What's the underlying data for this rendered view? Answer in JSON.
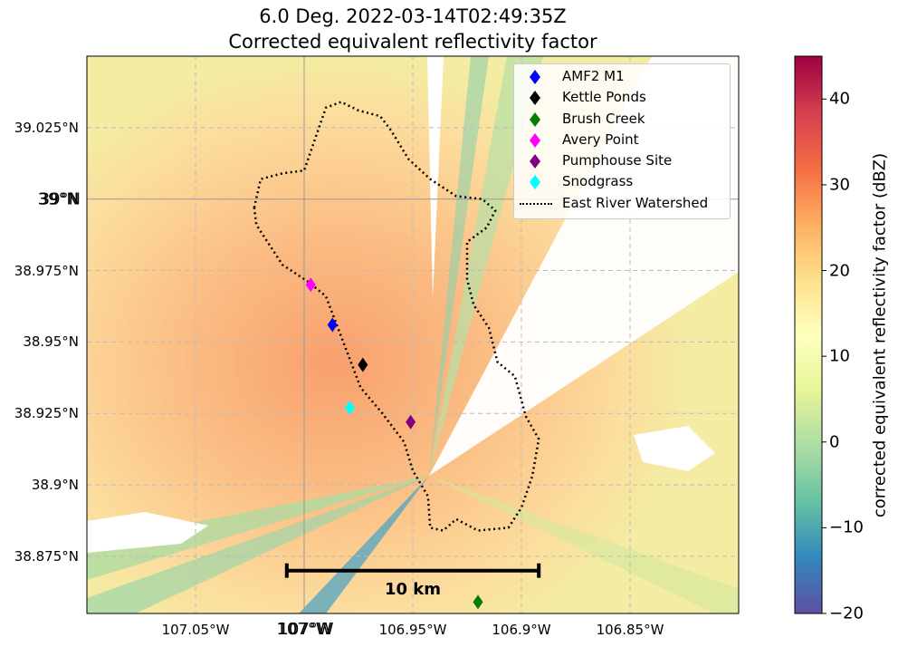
{
  "title": {
    "line1": "6.0 Deg. 2022-03-14T02:49:35Z",
    "line2": "Corrected equivalent reflectivity factor"
  },
  "colorbar": {
    "label": "corrected equivalent reflectivity factor (dBZ)",
    "min": -20,
    "max": 45,
    "ticks": [
      "40",
      "30",
      "20",
      "10",
      "0",
      "−10",
      "−20"
    ],
    "tick_values": [
      40,
      30,
      20,
      10,
      0,
      -10,
      -20
    ],
    "colormap": "Spectral_r"
  },
  "map": {
    "lon_range": [
      -107.1,
      -106.8
    ],
    "lat_range": [
      38.855,
      39.05
    ],
    "lat_ticks": [
      "39.025°N",
      "38.975°N",
      "38.95°N",
      "38.925°N",
      "38.9°N",
      "38.875°N"
    ],
    "lat_tick_values": [
      39.025,
      38.975,
      38.95,
      38.925,
      38.9,
      38.875
    ],
    "lon_ticks": [
      "107.05°W",
      "106.95°W",
      "106.9°W",
      "106.85°W"
    ],
    "lon_tick_values": [
      -107.05,
      -106.95,
      -106.9,
      -106.85
    ],
    "major_lat_label": "39°N",
    "major_lat_label_overlap": "39°N",
    "major_lat_value": 39.0,
    "major_lon_label": "107°W",
    "major_lon_label_overlap": "107°W",
    "major_lon_value": -107.0,
    "radar_location": {
      "lon": -106.945,
      "lat": 38.899
    }
  },
  "legend": {
    "placement": "top-right",
    "entries": [
      {
        "label": "AMF2 M1",
        "color": "#0000ff",
        "marker": "diamond"
      },
      {
        "label": "Kettle Ponds",
        "color": "#000000",
        "marker": "diamond"
      },
      {
        "label": "Brush Creek",
        "color": "#008000",
        "marker": "diamond"
      },
      {
        "label": "Avery Point",
        "color": "#ff00ff",
        "marker": "diamond"
      },
      {
        "label": "Pumphouse Site",
        "color": "#800080",
        "marker": "diamond"
      },
      {
        "label": "Snodgrass",
        "color": "#00ffff",
        "marker": "diamond"
      },
      {
        "label": "East River Watershed",
        "color": "#000000",
        "marker": "dotted-line"
      }
    ]
  },
  "sites": [
    {
      "name": "AMF2 M1",
      "lon": -106.987,
      "lat": 38.956,
      "color": "#0000ff"
    },
    {
      "name": "Kettle Ponds",
      "lon": -106.973,
      "lat": 38.942,
      "color": "#000000"
    },
    {
      "name": "Brush Creek",
      "lon": -106.92,
      "lat": 38.859,
      "color": "#008000"
    },
    {
      "name": "Avery Point",
      "lon": -106.997,
      "lat": 38.97,
      "color": "#ff00ff"
    },
    {
      "name": "Pumphouse Site",
      "lon": -106.951,
      "lat": 38.922,
      "color": "#800080"
    },
    {
      "name": "Snodgrass",
      "lon": -106.979,
      "lat": 38.927,
      "color": "#00ffff"
    }
  ],
  "scalebar": {
    "label": "10 km",
    "lon_start": -107.008,
    "lon_end": -106.892,
    "lat": 38.87
  },
  "watershed_outline": [
    [
      -107.023,
      38.997
    ],
    [
      -107.02,
      39.007
    ],
    [
      -107.01,
      39.009
    ],
    [
      -107.0,
      39.01
    ],
    [
      -106.995,
      39.021
    ],
    [
      -106.99,
      39.032
    ],
    [
      -106.983,
      39.034
    ],
    [
      -106.975,
      39.031
    ],
    [
      -106.965,
      39.029
    ],
    [
      -106.96,
      39.024
    ],
    [
      -106.952,
      39.014
    ],
    [
      -106.942,
      39.007
    ],
    [
      -106.93,
      39.001
    ],
    [
      -106.918,
      39.0
    ],
    [
      -106.912,
      38.996
    ],
    [
      -106.916,
      38.99
    ],
    [
      -106.925,
      38.985
    ],
    [
      -106.925,
      38.972
    ],
    [
      -106.922,
      38.963
    ],
    [
      -106.915,
      38.955
    ],
    [
      -106.911,
      38.943
    ],
    [
      -106.903,
      38.938
    ],
    [
      -106.898,
      38.924
    ],
    [
      -106.892,
      38.916
    ],
    [
      -106.895,
      38.903
    ],
    [
      -106.9,
      38.892
    ],
    [
      -106.906,
      38.885
    ],
    [
      -106.92,
      38.884
    ],
    [
      -106.93,
      38.888
    ],
    [
      -106.936,
      38.884
    ],
    [
      -106.942,
      38.885
    ],
    [
      -106.943,
      38.896
    ],
    [
      -106.95,
      38.905
    ],
    [
      -106.954,
      38.915
    ],
    [
      -106.964,
      38.925
    ],
    [
      -106.974,
      38.934
    ],
    [
      -106.982,
      38.95
    ],
    [
      -106.99,
      38.966
    ],
    [
      -106.998,
      38.971
    ],
    [
      -107.01,
      38.977
    ],
    [
      -107.022,
      38.991
    ],
    [
      -107.023,
      38.997
    ]
  ]
}
